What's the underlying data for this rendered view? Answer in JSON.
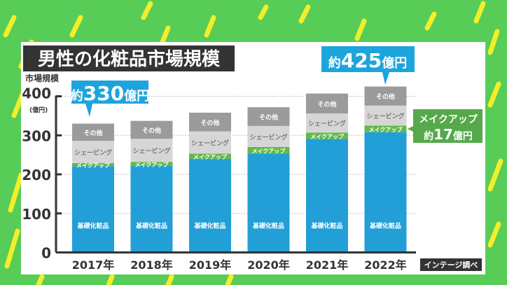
{
  "colors": {
    "background": "#57cc57",
    "stripe": "#f3ee2a",
    "base": "#229fd6",
    "makeup": "#62b948",
    "shaving": "#d6d6d6",
    "other": "#9b9b9b",
    "callout": "#1ea4dc",
    "makeup_callout": "#55a94a",
    "title_bg": "#333333"
  },
  "chart_data": {
    "type": "bar",
    "stacked": true,
    "title": "男性の化粧品市場規模",
    "ylabel": "市場規模",
    "yunit": "(億円)",
    "ylim": [
      0,
      400
    ],
    "yticks": [
      0,
      100,
      200,
      300,
      400
    ],
    "grid": true,
    "categories": [
      "2017年",
      "2018年",
      "2019年",
      "2020年",
      "2021年",
      "2022年"
    ],
    "series": [
      {
        "name": "基礎化粧品",
        "values": [
          221,
          222,
          240,
          253,
          291,
          308
        ]
      },
      {
        "name": "メイクアップ",
        "values": [
          8,
          10,
          13,
          17,
          16,
          17
        ]
      },
      {
        "name": "シェービング",
        "values": [
          57,
          59,
          57,
          54,
          49,
          51
        ]
      },
      {
        "name": "その他",
        "values": [
          44,
          46,
          48,
          48,
          51,
          49
        ]
      }
    ],
    "annotations": {
      "first_total": {
        "prefix": "約",
        "value": "330",
        "suffix": "億円"
      },
      "last_total": {
        "prefix": "約",
        "value": "425",
        "suffix": "億円"
      },
      "makeup_2022": {
        "line1": "メイクアップ",
        "prefix": "約",
        "value": "17",
        "suffix": "億円"
      }
    },
    "source": "インテージ調べ"
  }
}
